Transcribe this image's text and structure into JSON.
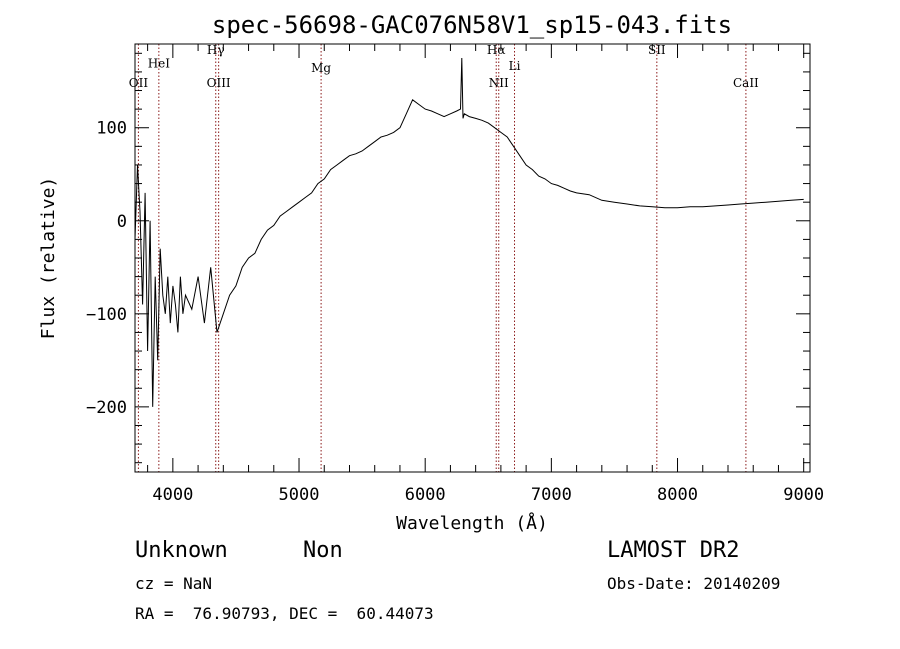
{
  "chart_data": {
    "type": "line",
    "title": "spec-56698-GAC076N58V1_sp15-043.fits",
    "xlabel": "Wavelength (Å)",
    "ylabel": "Flux (relative)",
    "xlim": [
      3700,
      9050
    ],
    "ylim": [
      -270,
      190
    ],
    "xticks": [
      4000,
      5000,
      6000,
      7000,
      8000,
      9000
    ],
    "xtick_labels": [
      "4000",
      "5000",
      "6000",
      "7000",
      "8000",
      "9000"
    ],
    "yticks": [
      -200,
      -100,
      0,
      100
    ],
    "ytick_labels": [
      "−200",
      "−100",
      "0",
      "100"
    ],
    "grid": false,
    "legend": "none",
    "line_color": "#000000",
    "marker_color": "#8b1a1a",
    "lines": [
      {
        "label": "OII",
        "x": 3727,
        "label_y": 144
      },
      {
        "label": "HeI",
        "x": 3889,
        "label_y": 165
      },
      {
        "label": "Hγ",
        "x": 4340,
        "label_y": 179
      },
      {
        "label": "OIII",
        "x": 4363,
        "label_y": 144
      },
      {
        "label": "Mg",
        "x": 5175,
        "label_y": 160
      },
      {
        "label": "Hα",
        "x": 6563,
        "label_y": 179
      },
      {
        "label": "NII",
        "x": 6583,
        "label_y": 144
      },
      {
        "label": "Li",
        "x": 6708,
        "label_y": 162
      },
      {
        "label": "SII",
        "x": 7836,
        "label_y": 179
      },
      {
        "label": "CaII",
        "x": 8542,
        "label_y": 144
      }
    ],
    "series": [
      {
        "x": [
          3700,
          3720,
          3740,
          3760,
          3780,
          3800,
          3820,
          3840,
          3860,
          3880,
          3900,
          3920,
          3940,
          3960,
          3980,
          4000,
          4020,
          4040,
          4060,
          4080,
          4100,
          4150,
          4200,
          4250,
          4300,
          4350,
          4400,
          4450,
          4500,
          4550,
          4600,
          4650,
          4700,
          4750,
          4800,
          4850,
          4900,
          4950,
          5000,
          5050,
          5100,
          5150,
          5200,
          5250,
          5300,
          5350,
          5400,
          5450,
          5500,
          5550,
          5600,
          5650,
          5700,
          5750,
          5800,
          5850,
          5900,
          5950,
          6000,
          6050,
          6100,
          6150,
          6200,
          6250,
          6280,
          6290,
          6300,
          6310,
          6350,
          6400,
          6450,
          6500,
          6550,
          6600,
          6650,
          6700,
          6750,
          6800,
          6850,
          6900,
          6950,
          7000,
          7050,
          7100,
          7150,
          7200,
          7300,
          7400,
          7500,
          7600,
          7700,
          7800,
          7900,
          8000,
          8100,
          8200,
          8300,
          8400,
          8500,
          8600,
          8700,
          8800,
          8900,
          9000
        ],
        "y": [
          -20,
          60,
          10,
          -90,
          30,
          -140,
          0,
          -200,
          -60,
          -150,
          -30,
          -80,
          -100,
          -60,
          -110,
          -70,
          -90,
          -120,
          -60,
          -100,
          -80,
          -95,
          -60,
          -110,
          -50,
          -120,
          -100,
          -80,
          -70,
          -50,
          -40,
          -35,
          -20,
          -10,
          -5,
          5,
          10,
          15,
          20,
          25,
          30,
          40,
          45,
          55,
          60,
          65,
          70,
          72,
          75,
          80,
          85,
          90,
          92,
          95,
          100,
          115,
          130,
          125,
          120,
          118,
          115,
          112,
          115,
          118,
          120,
          175,
          110,
          115,
          112,
          110,
          108,
          105,
          100,
          95,
          90,
          80,
          70,
          60,
          55,
          48,
          45,
          40,
          38,
          35,
          32,
          30,
          28,
          22,
          20,
          18,
          16,
          15,
          14,
          14,
          15,
          15,
          16,
          17,
          18,
          19,
          20,
          21,
          22,
          23
        ]
      }
    ]
  },
  "info": {
    "class": "Unknown",
    "subclass": "Non",
    "survey": "LAMOST DR2",
    "cz": "cz = NaN",
    "obs_date": "Obs-Date: 20140209",
    "coords": "RA =  76.90793, DEC =  60.44073"
  }
}
